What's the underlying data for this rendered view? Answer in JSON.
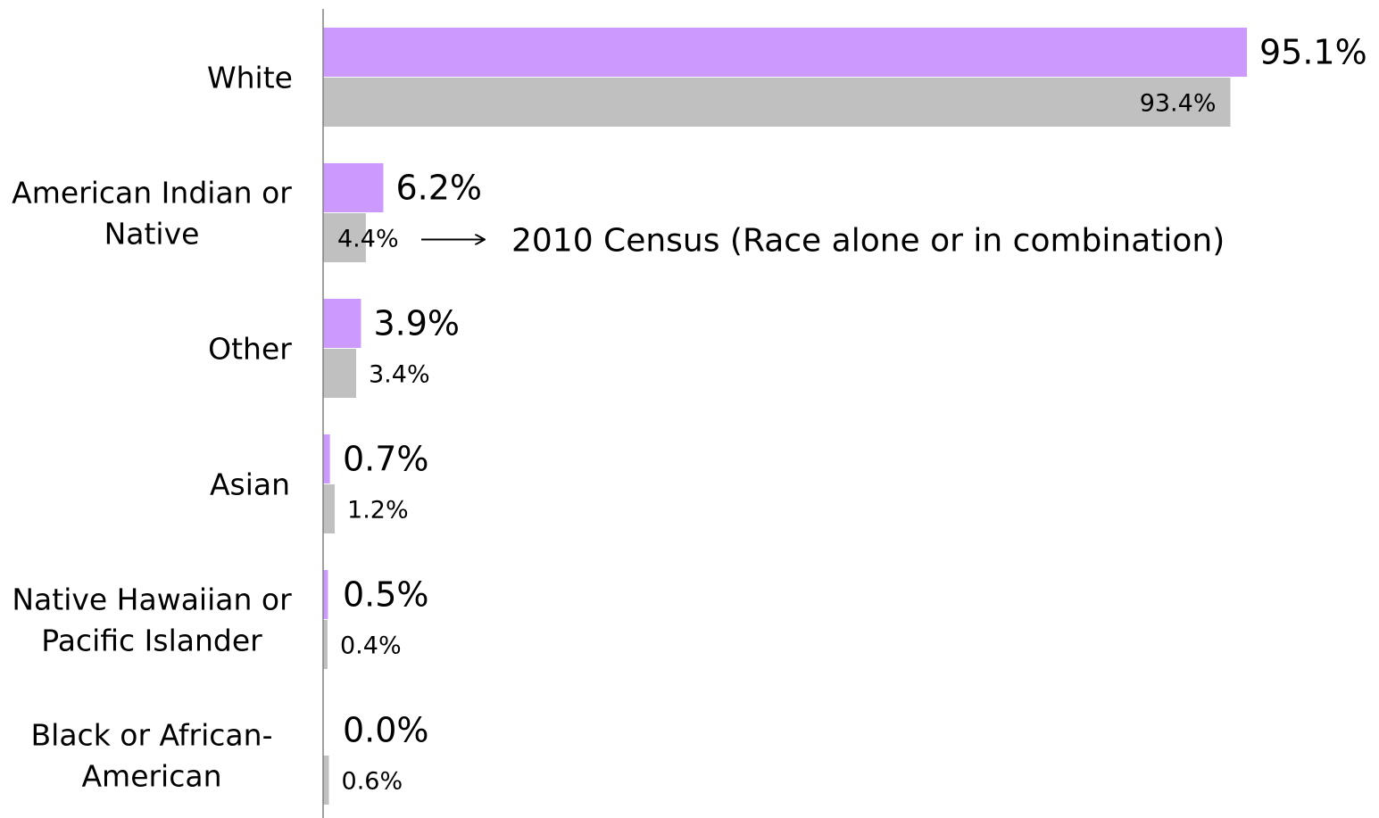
{
  "chart_data": {
    "type": "bar",
    "orientation": "horizontal",
    "categories": [
      [
        "White"
      ],
      [
        "American Indian or",
        "Native"
      ],
      [
        "Other"
      ],
      [
        "Asian"
      ],
      [
        "Native Hawaiian or",
        "Pacific Islander"
      ],
      [
        "Black or African-",
        "American"
      ]
    ],
    "series": [
      {
        "values": [
          95.1,
          6.2,
          3.9,
          0.7,
          0.5,
          0.0
        ],
        "labels": [
          "95.1%",
          "6.2%",
          "3.9%",
          "0.7%",
          "0.5%",
          "0.0%"
        ],
        "color": "#cc99ff"
      },
      {
        "name": "2010 Census (Race alone or in combination)",
        "values": [
          93.4,
          4.4,
          3.4,
          1.2,
          0.4,
          0.6
        ],
        "labels": [
          "93.4%",
          "4.4%",
          "3.4%",
          "1.2%",
          "0.4%",
          "0.6%"
        ],
        "color": "#c0c0c0"
      }
    ],
    "xlim": [
      0,
      95.1
    ],
    "grid": false,
    "legend": "none",
    "annotations": [
      {
        "text": "2010 Census (Race alone or in combination)",
        "arrow": "right",
        "category": 1,
        "series": 1
      }
    ],
    "axis_color": "#808080"
  }
}
